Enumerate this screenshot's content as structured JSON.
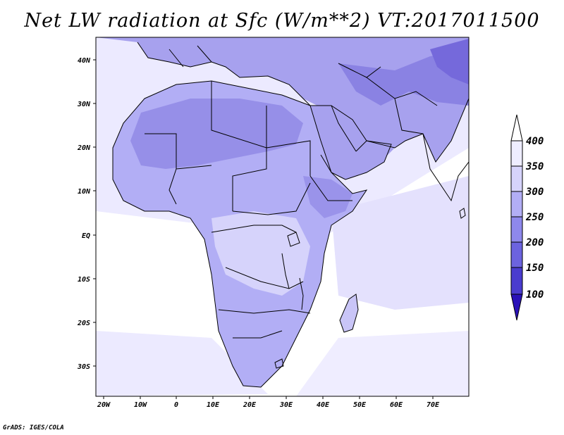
{
  "map": {
    "title": "Net LW radiation at Sfc (W/m**2) VT:2017011500",
    "credit": "GrADS: IGES/COLA",
    "x_ticks": [
      "20W",
      "10W",
      "0",
      "10E",
      "20E",
      "30E",
      "40E",
      "50E",
      "60E",
      "70E"
    ],
    "y_ticks": [
      "40N",
      "30N",
      "20N",
      "10N",
      "EQ",
      "10S",
      "20S",
      "30S"
    ],
    "colorbar": {
      "labels": [
        "100",
        "150",
        "200",
        "250",
        "300",
        "350",
        "400"
      ],
      "colors": [
        "#2a12b8",
        "#4a3ccf",
        "#6c63df",
        "#8e88ec",
        "#b2aef5",
        "#d6d3fb",
        "#eeedff"
      ]
    },
    "palette": {
      "ocean": "#ffffff",
      "ocean_light": "#eceaff",
      "land_light": "#c9c5f7",
      "land_mid": "#a7a1ee",
      "land_dark": "#8a82e3",
      "land_darkest": "#7569db",
      "border": "#000000"
    }
  }
}
